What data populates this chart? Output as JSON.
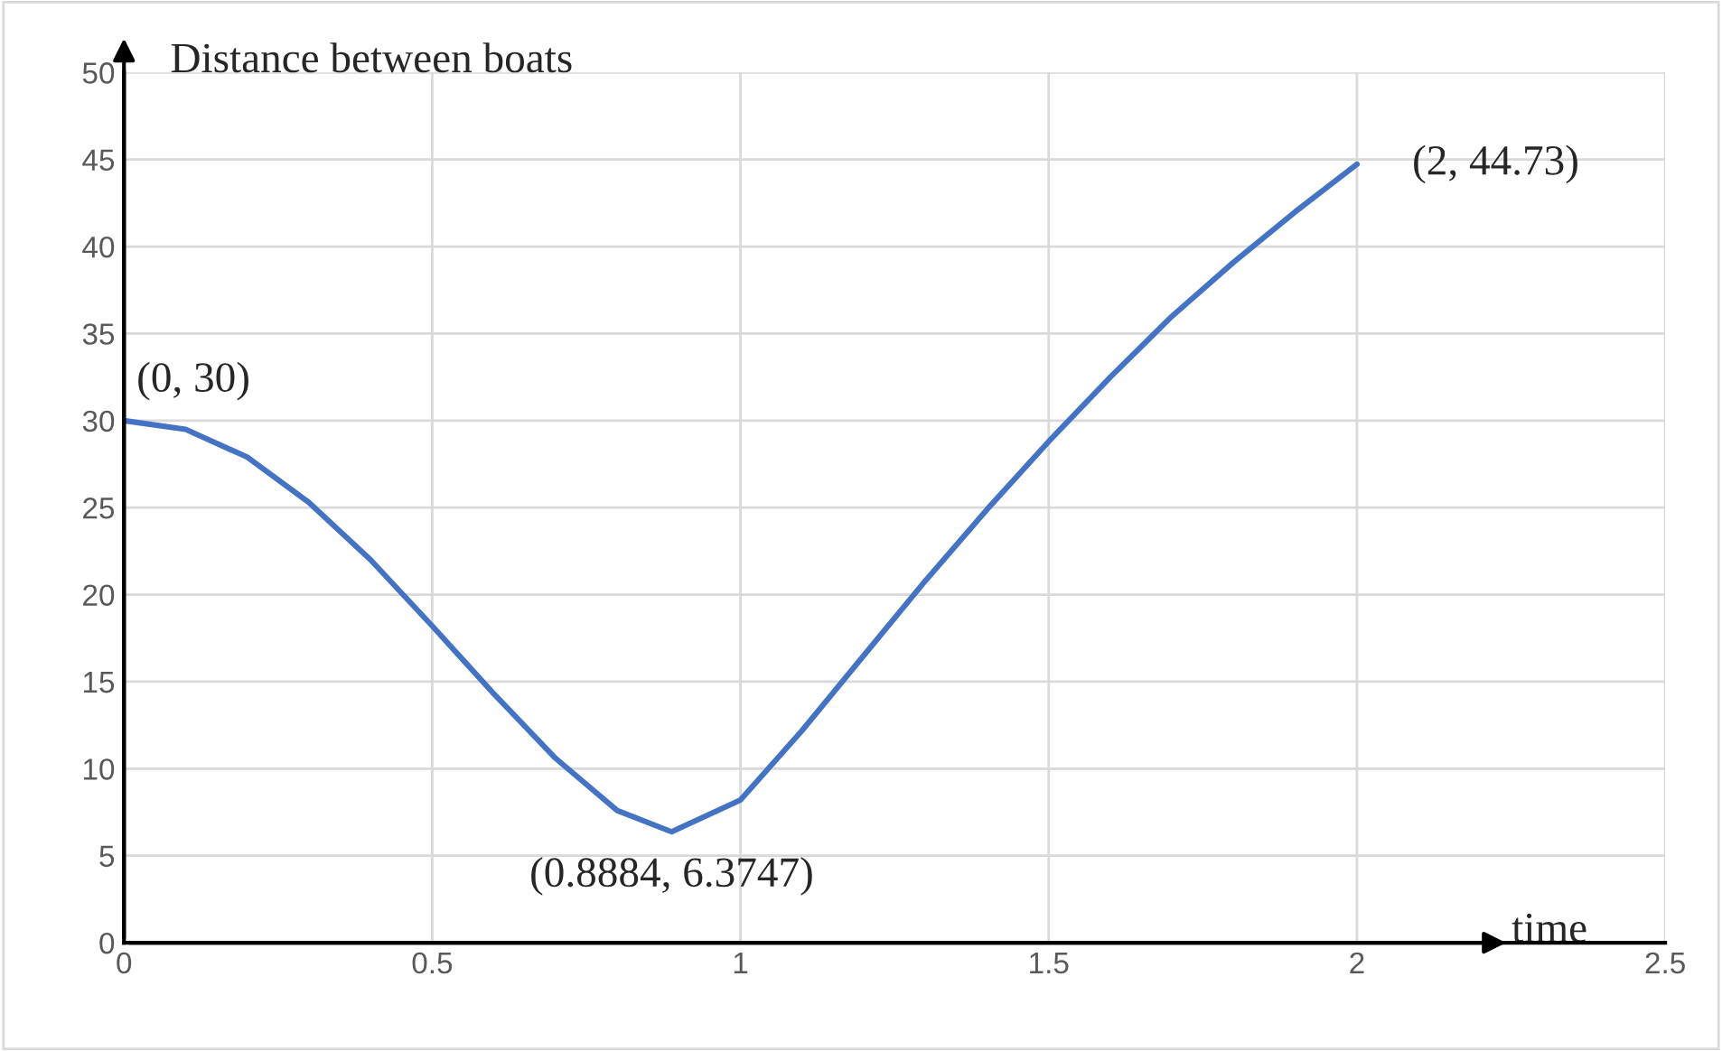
{
  "chart_data": {
    "type": "line",
    "xlabel": "time",
    "ylabel": "Distance between boats",
    "x": [
      0,
      0.1,
      0.2,
      0.3,
      0.4,
      0.5,
      0.6,
      0.7,
      0.8,
      0.8884,
      1.0,
      1.1,
      1.2,
      1.3,
      1.4,
      1.5,
      1.6,
      1.7,
      1.8,
      1.9,
      2.0
    ],
    "series": [
      {
        "color": "#4472c4",
        "values": [
          30,
          29.5,
          27.9,
          25.3,
          22.0,
          18.2,
          14.3,
          10.6,
          7.6,
          6.3747,
          8.2,
          12.2,
          16.5,
          20.8,
          24.9,
          28.8,
          32.5,
          36.0,
          39.1,
          42.0,
          44.73
        ]
      }
    ],
    "annotations": [
      {
        "text": "(0, 30)",
        "x": 0,
        "y": 30
      },
      {
        "text": "(0.8884, 6.3747)",
        "x": 0.8884,
        "y": 6.3747
      },
      {
        "text": "(2, 44.73)",
        "x": 2,
        "y": 44.73
      }
    ],
    "xlim": [
      0,
      2.5
    ],
    "ylim": [
      0,
      50
    ],
    "xticks": [
      0,
      0.5,
      1,
      1.5,
      2,
      2.5
    ],
    "yticks": [
      0,
      5,
      10,
      15,
      20,
      25,
      30,
      35,
      40,
      45,
      50
    ],
    "grid": true,
    "legend": false,
    "marker": "none",
    "line_style": "solid"
  }
}
